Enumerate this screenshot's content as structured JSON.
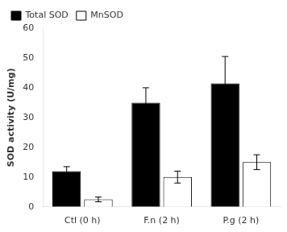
{
  "chart_data": {
    "type": "bar",
    "categories": [
      "Ctl (0 h)",
      "F.n (2 h)",
      "P.g (2 h)"
    ],
    "series": [
      {
        "name": "Total SOD",
        "color": "#000000",
        "values": [
          12,
          35,
          41.5
        ],
        "errors": [
          1.5,
          5,
          9
        ]
      },
      {
        "name": "MnSOD",
        "color": "#ffffff",
        "values": [
          2.5,
          10,
          15
        ],
        "errors": [
          0.8,
          2,
          2.5
        ]
      }
    ],
    "ylabel": "SOD activity (U/mg)",
    "ylim": [
      0,
      60
    ],
    "yticks": [
      0,
      10,
      20,
      30,
      40,
      50,
      60
    ],
    "legend": "upper left",
    "grid": false
  }
}
